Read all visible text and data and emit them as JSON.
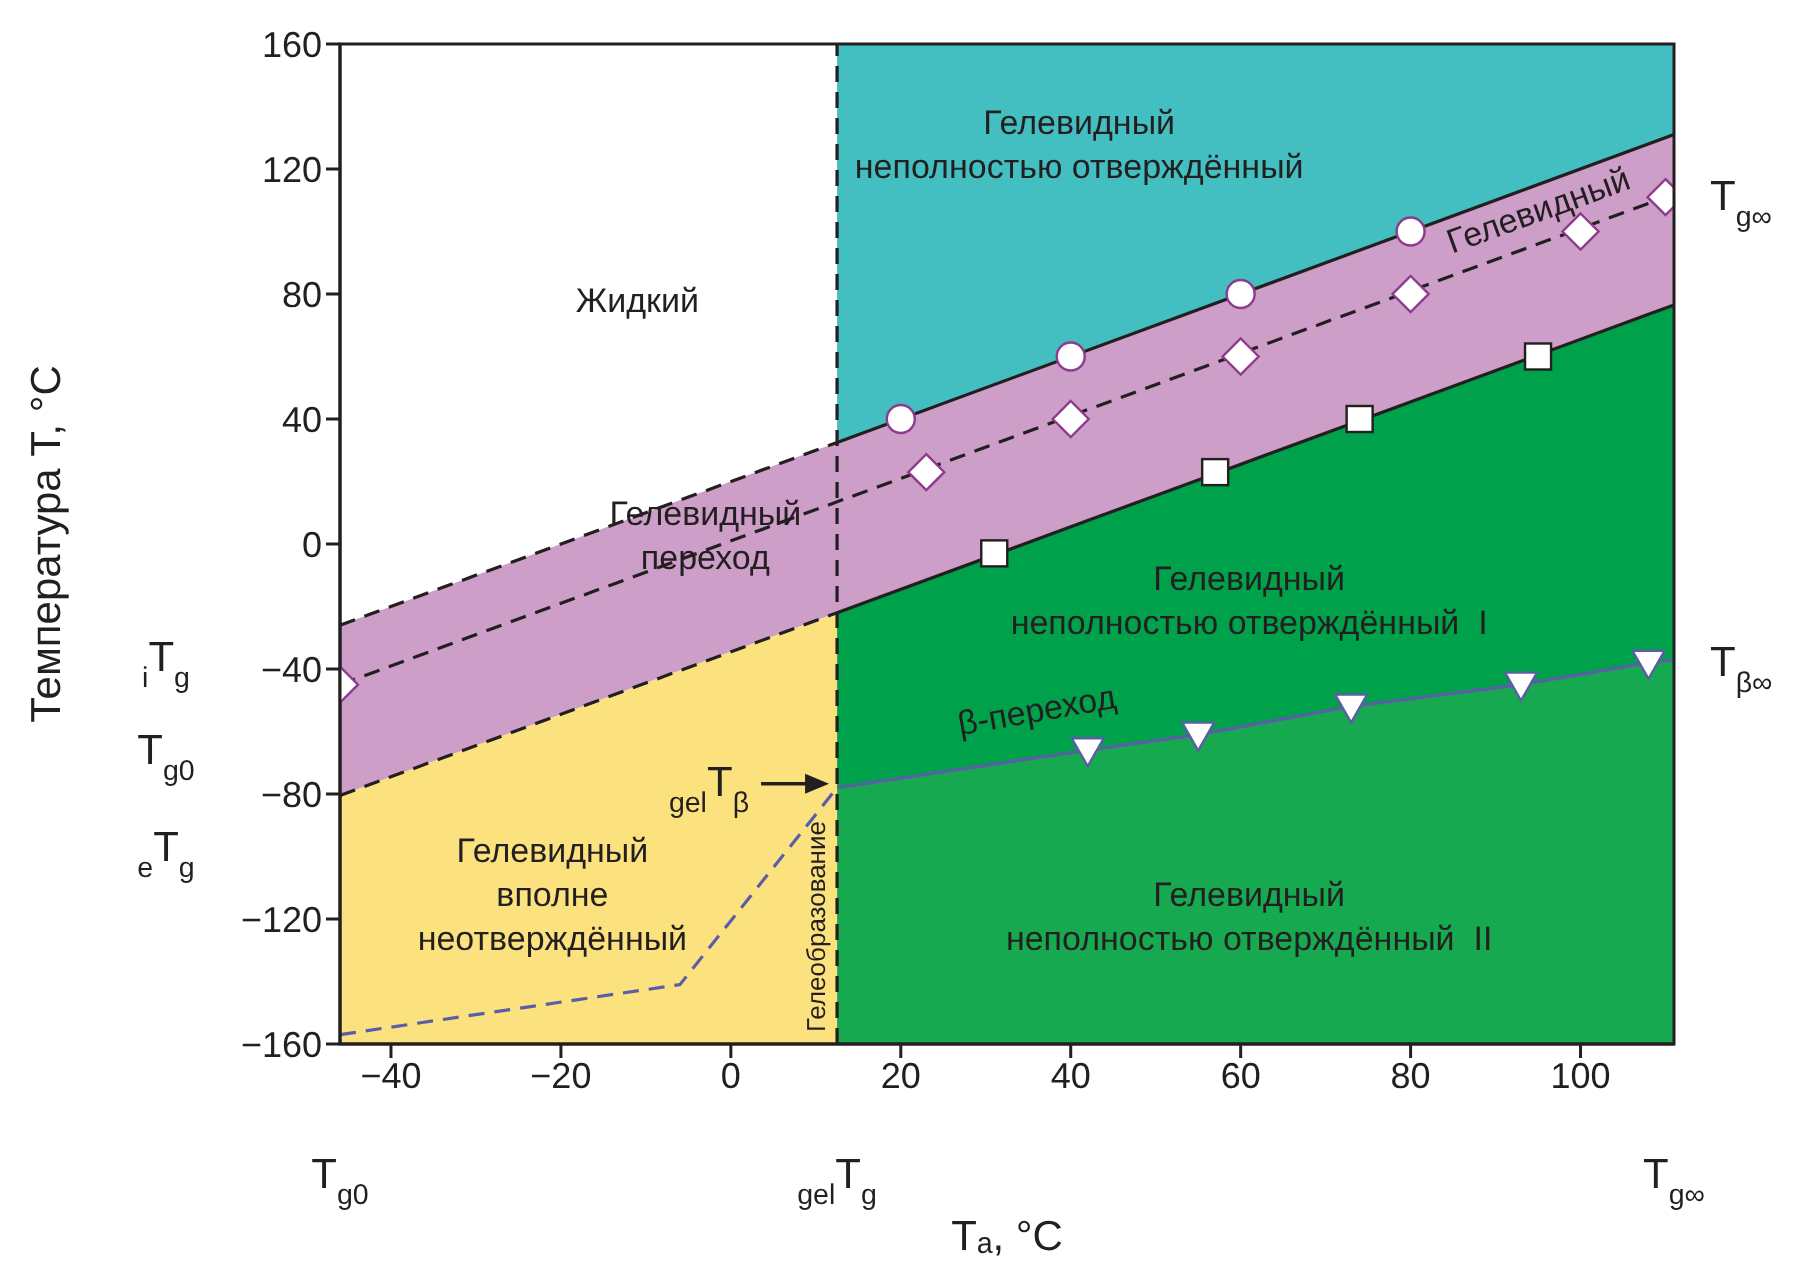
{
  "chart_data": {
    "type": "line",
    "xlabel": "Tₐ, °C",
    "ylabel": "Температура T, °C",
    "xlim": [
      -46,
      111
    ],
    "ylim": [
      -160,
      160
    ],
    "xticks": [
      -40,
      -20,
      0,
      20,
      40,
      60,
      80,
      100
    ],
    "yticks": [
      -160,
      -120,
      -80,
      -40,
      0,
      40,
      80,
      120,
      160
    ],
    "series": [
      {
        "color": "#231f20",
        "line_style": "dashed",
        "x": [
          -46,
          12.5
        ],
        "values": [
          -26,
          32.5
        ]
      },
      {
        "color": "#231f20",
        "line_style": "solid",
        "x": [
          12.5,
          111
        ],
        "values": [
          32.5,
          131
        ],
        "lower": [
          32.5,
          131
        ],
        "upper": [
          160,
          160
        ]
      },
      {
        "color": "#231f20",
        "line_style": "dashed",
        "x": [
          -46,
          111
        ],
        "values": [
          -45,
          112
        ],
        "lower": [
          -80.5,
          76.5
        ],
        "upper": [
          -26,
          131
        ]
      },
      {
        "color": "#231f20",
        "line_style": "dashed",
        "x": [
          -46,
          12.5
        ],
        "values": [
          -80.5,
          -22
        ],
        "lower": [
          -160,
          -160
        ],
        "upper": [
          -80.5,
          -22
        ]
      },
      {
        "color": "#231f20",
        "line_style": "solid",
        "x": [
          12.5,
          42,
          55,
          73,
          93,
          108,
          111
        ],
        "values": [
          -22,
          7.5,
          20.5,
          38.5,
          58.5,
          73.5,
          76.5
        ],
        "lower": [
          -78,
          -66,
          -61,
          -52,
          -45,
          -38,
          -37
        ],
        "upper": [
          -22,
          7.5,
          20.5,
          38.5,
          58.5,
          73.5,
          76.5
        ]
      },
      {
        "color": "#5b5ea6",
        "line_style": "solid",
        "x": [
          12.5,
          42,
          55,
          73,
          93,
          108,
          111
        ],
        "values": [
          -78,
          -66,
          -61,
          -52,
          -45,
          -38,
          -37
        ],
        "lower": [
          -160,
          -160,
          -160,
          -160,
          -160,
          -160,
          -160
        ],
        "upper": [
          -78,
          -66,
          -61,
          -52,
          -45,
          -38,
          -37
        ]
      },
      {
        "color": "#5b5ea6",
        "line_style": "dashed",
        "x": [
          -46,
          -6,
          12.5
        ],
        "values": [
          -157,
          -141,
          -78
        ]
      },
      {
        "type": "scatter",
        "color": "#ffffff",
        "marker": "circle",
        "x": [
          20,
          40,
          60,
          80
        ],
        "values": [
          40,
          60,
          80,
          100
        ]
      },
      {
        "type": "scatter",
        "color": "#ffffff",
        "marker": "diamond",
        "x": [
          -46,
          23,
          40,
          60,
          80,
          100,
          110
        ],
        "values": [
          -45,
          23,
          40,
          60,
          80,
          100,
          111
        ]
      },
      {
        "type": "scatter",
        "color": "#ffffff",
        "marker": "square",
        "x": [
          31,
          57,
          74,
          95
        ],
        "values": [
          -3,
          23,
          40,
          60
        ]
      },
      {
        "type": "scatter",
        "color": "#ffffff",
        "marker": "triangle",
        "x": [
          42,
          55,
          73,
          93,
          108
        ],
        "values": [
          -66,
          -61,
          -52,
          -45,
          -38
        ]
      }
    ],
    "ref_lines": [
      {
        "axis": "x",
        "value": 12.5,
        "label": "Гелеобразование",
        "color": "#231f20",
        "line_style": "dashed"
      }
    ],
    "annotations": [
      "Жидкий",
      "Гелевидный\nнеполностью отверждённый",
      "Гелевидный",
      "Гелевидный\nпереход",
      "Гелевидный\nнеполностью отверждённый  I",
      "β-переход",
      "Гелевидный\nнеполностью отверждённый  II",
      "Гелевидный\nвполне\nнеотверждённый",
      "$_{i}$T$_{g}$",
      "T$_{g0}$",
      "$_{e}$T$_{g}$",
      "T$_{g0}$",
      "$_{gel}$T$_{g}$",
      "T$_{g∞}$",
      "T$_{g∞}$",
      "T$_{β∞}$",
      {
        "text": "$_{gel}$T$_{β}$",
        "x": 12.5,
        "y": -78
      }
    ]
  }
}
